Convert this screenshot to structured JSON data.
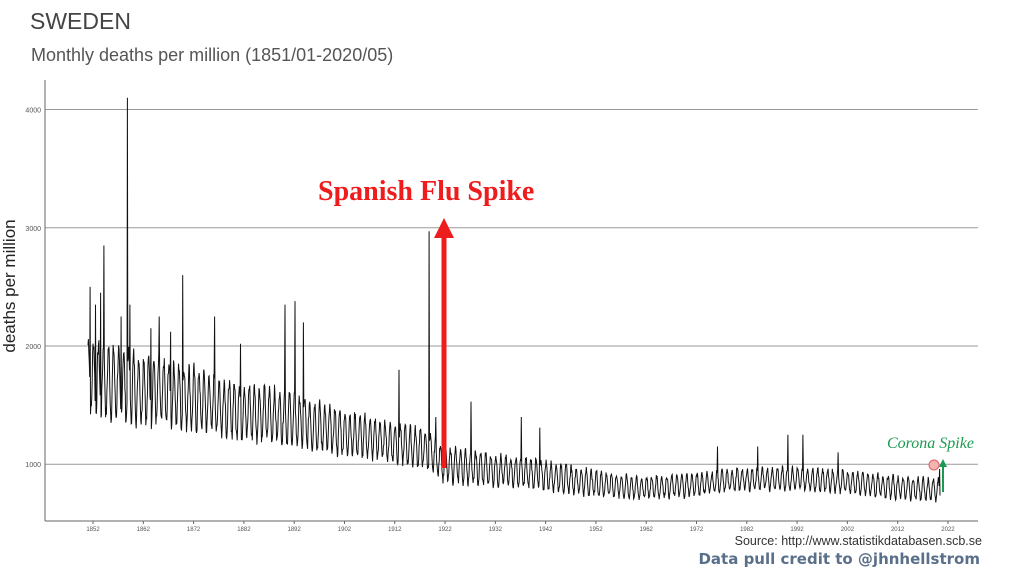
{
  "header": {
    "title": "SWEDEN",
    "subtitle": "Monthly deaths per million (1851/01-2020/05)"
  },
  "footer": {
    "source": "Source: http://www.statistikdatabasen.scb.se",
    "credit": "Data pull credit to @jhnhellstrom"
  },
  "annotations": {
    "spanish_flu": {
      "text": "Spanish Flu Spike",
      "color": "#ee1c1c"
    },
    "corona": {
      "text": "Corona Spike",
      "color": "#1a9a50"
    }
  },
  "chart_data": {
    "type": "line",
    "title": "SWEDEN",
    "subtitle": "Monthly deaths per million (1851/01-2020/05)",
    "xlabel": "",
    "ylabel": "deaths per million",
    "xlim": [
      1851,
      2020.42
    ],
    "ylim": [
      520,
      4250
    ],
    "y_ticks": [
      1000,
      2000,
      3000,
      4000
    ],
    "x_ticks": [
      1852,
      1862,
      1872,
      1882,
      1892,
      1902,
      1912,
      1922,
      1932,
      1942,
      1952,
      1962,
      1972,
      1982,
      1992,
      2002,
      2012,
      2022
    ],
    "grid": "horizontal",
    "line_color": "#111111",
    "series_description": "Monthly values with strong winter seasonality; trend declines from about 1750 in the 1850s to about 800 by the 1950s, stays near 800-900 through 2020.",
    "trend": [
      [
        1851,
        1750
      ],
      [
        1860,
        1650
      ],
      [
        1870,
        1580
      ],
      [
        1880,
        1460
      ],
      [
        1890,
        1400
      ],
      [
        1900,
        1280
      ],
      [
        1910,
        1200
      ],
      [
        1918,
        1130
      ],
      [
        1922,
        1000
      ],
      [
        1930,
        960
      ],
      [
        1940,
        920
      ],
      [
        1950,
        850
      ],
      [
        1960,
        800
      ],
      [
        1970,
        820
      ],
      [
        1980,
        870
      ],
      [
        1990,
        880
      ],
      [
        2000,
        860
      ],
      [
        2010,
        810
      ],
      [
        2020,
        780
      ]
    ],
    "seasonal_amplitude": [
      [
        1851,
        300
      ],
      [
        1880,
        230
      ],
      [
        1910,
        160
      ],
      [
        1930,
        130
      ],
      [
        1960,
        90
      ],
      [
        2020,
        90
      ]
    ],
    "spikes": [
      {
        "x": 1851.4,
        "y": 2500
      },
      {
        "x": 1852.5,
        "y": 2350
      },
      {
        "x": 1853.5,
        "y": 2450
      },
      {
        "x": 1854.2,
        "y": 2850
      },
      {
        "x": 1857.6,
        "y": 2250
      },
      {
        "x": 1858.8,
        "y": 4100
      },
      {
        "x": 1859.3,
        "y": 2350
      },
      {
        "x": 1863.5,
        "y": 2150
      },
      {
        "x": 1865.2,
        "y": 2250
      },
      {
        "x": 1867.4,
        "y": 2120
      },
      {
        "x": 1869.8,
        "y": 2600
      },
      {
        "x": 1876.2,
        "y": 2250
      },
      {
        "x": 1881.3,
        "y": 2020
      },
      {
        "x": 1890.2,
        "y": 2350
      },
      {
        "x": 1892.2,
        "y": 2380
      },
      {
        "x": 1893.8,
        "y": 2200
      },
      {
        "x": 1912.8,
        "y": 1800
      },
      {
        "x": 1918.8,
        "y": 2970
      },
      {
        "x": 1920.2,
        "y": 1400
      },
      {
        "x": 1927.2,
        "y": 1530
      },
      {
        "x": 1937.2,
        "y": 1400
      },
      {
        "x": 1940.8,
        "y": 1310
      },
      {
        "x": 1976.2,
        "y": 1150
      },
      {
        "x": 1984.2,
        "y": 1150
      },
      {
        "x": 1990.2,
        "y": 1250
      },
      {
        "x": 1993.2,
        "y": 1250
      },
      {
        "x": 2000.2,
        "y": 1100
      },
      {
        "x": 2020.33,
        "y": 960
      }
    ]
  }
}
